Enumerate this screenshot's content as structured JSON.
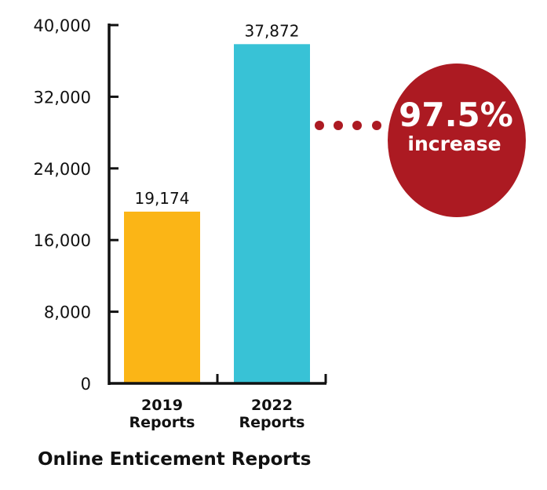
{
  "chart_data": {
    "type": "bar",
    "title": "Online Enticement Reports",
    "xlabel": "",
    "ylabel": "",
    "categories": [
      [
        "2019",
        "Reports"
      ],
      [
        "2022",
        "Reports"
      ]
    ],
    "values": [
      19174,
      37872
    ],
    "value_labels": [
      "19,174",
      "37,872"
    ],
    "ylim": [
      0,
      40000
    ],
    "yticks": [
      0,
      8000,
      16000,
      24000,
      32000,
      40000
    ],
    "ytick_labels": [
      "0",
      "8,000",
      "16,000",
      "24,000",
      "32,000",
      "40,000"
    ],
    "grid": false,
    "colors": [
      "#fbb516",
      "#38c2d6"
    ],
    "annotation": {
      "value": "97.5%",
      "label": "increase",
      "color": "#ac1a22",
      "text_color": "#ffffff"
    }
  }
}
